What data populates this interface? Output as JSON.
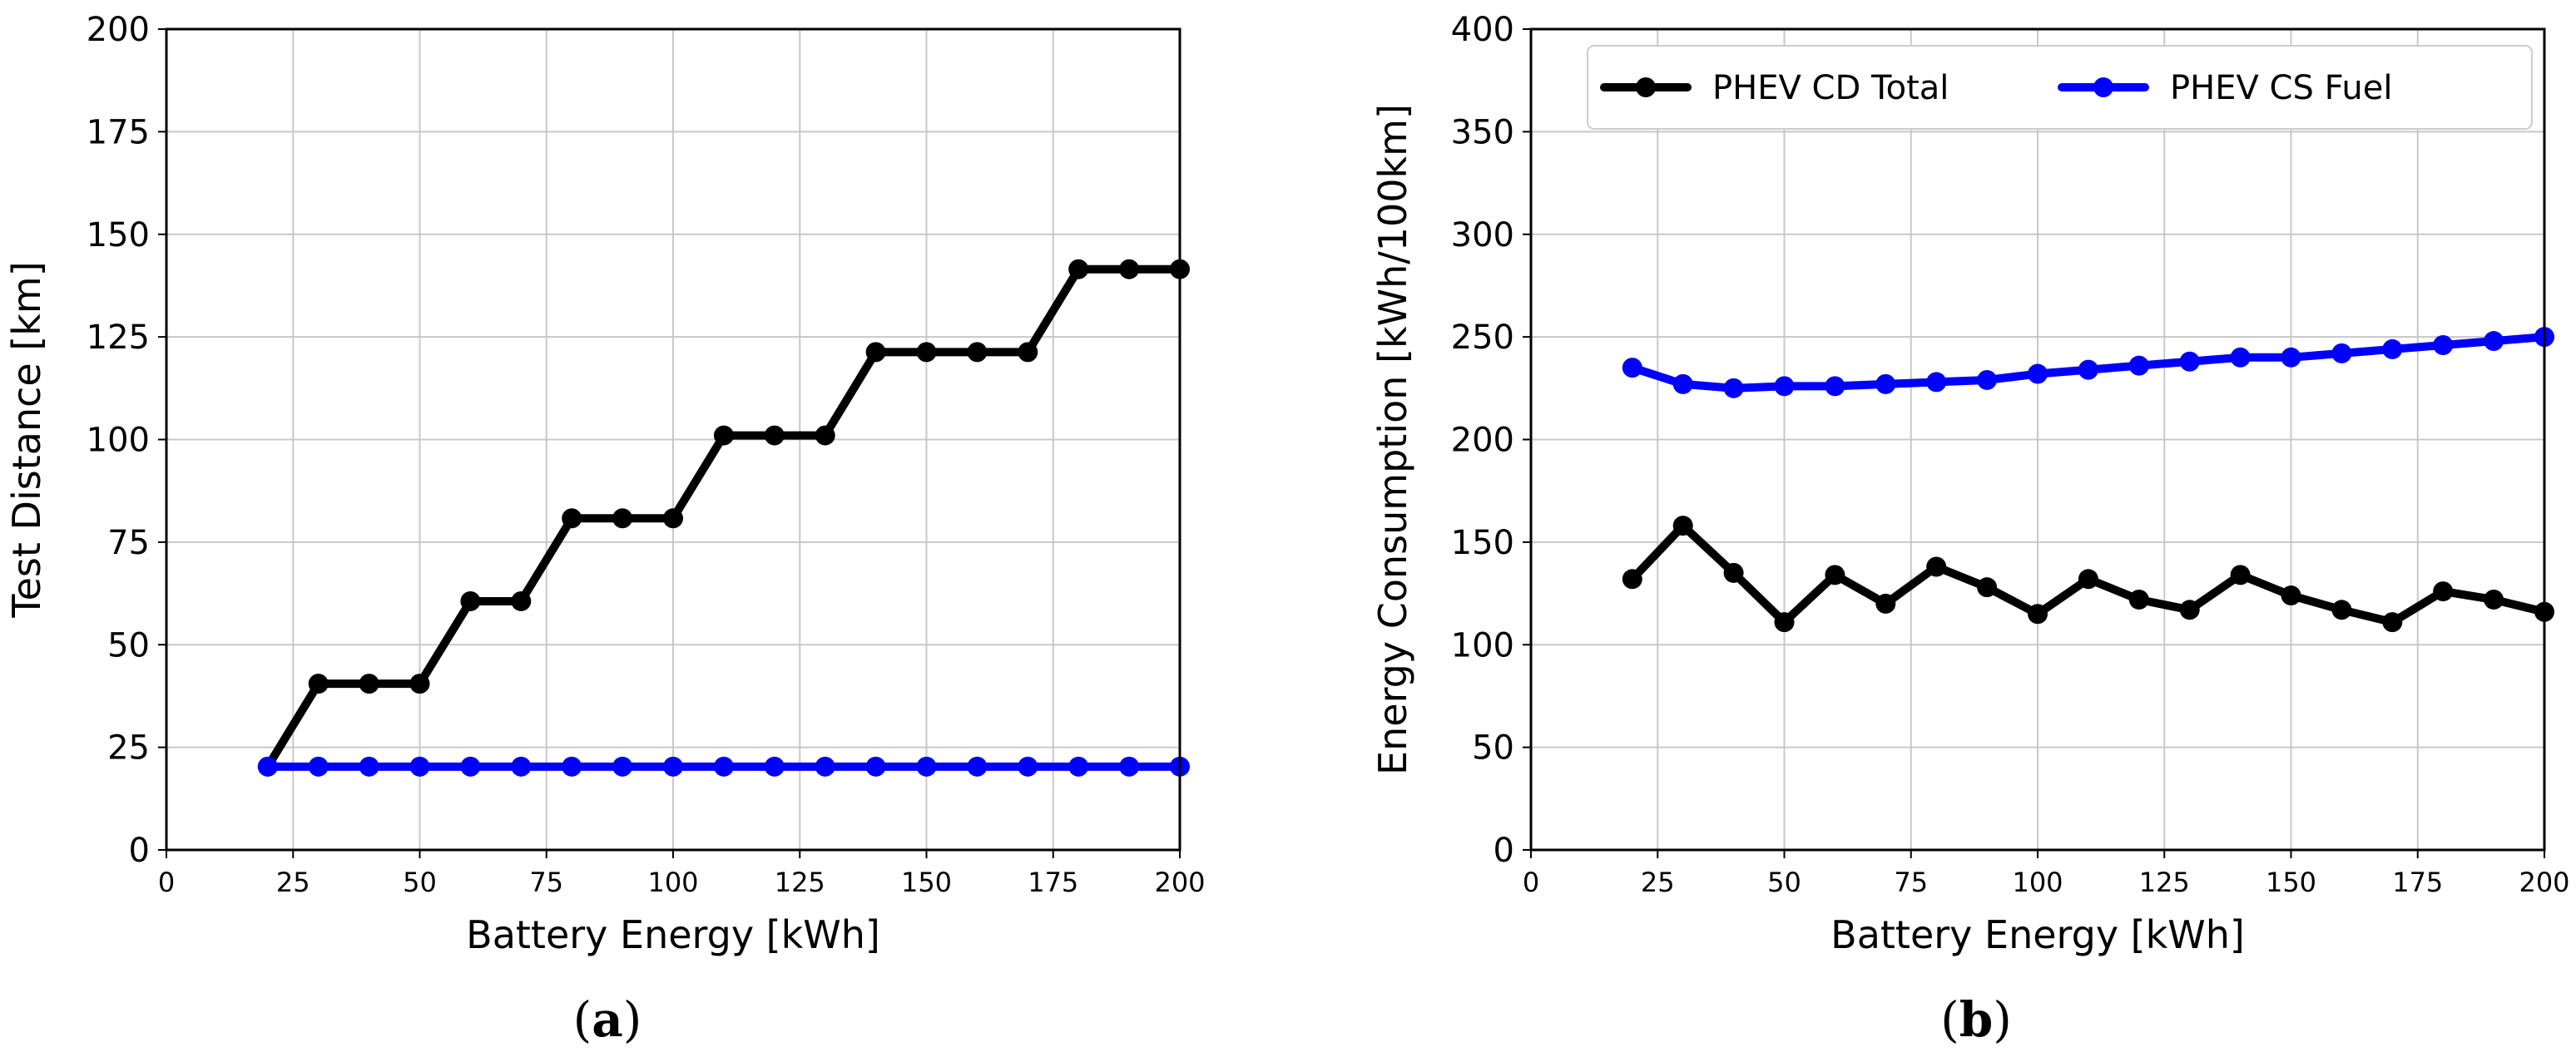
{
  "chart_data": [
    {
      "type": "line",
      "panel_caption_letter": "a",
      "xlabel": "Battery Energy [kWh]",
      "ylabel": "Test Distance [km]",
      "xlim": [
        0,
        200
      ],
      "ylim": [
        0,
        200
      ],
      "xticks": [
        0,
        25,
        50,
        75,
        100,
        125,
        150,
        175,
        200
      ],
      "yticks": [
        0,
        25,
        50,
        75,
        100,
        125,
        150,
        175,
        200
      ],
      "grid": true,
      "legend": null,
      "x": [
        20,
        30,
        40,
        50,
        60,
        70,
        80,
        90,
        100,
        110,
        120,
        130,
        140,
        150,
        160,
        170,
        180,
        190,
        200
      ],
      "series": [
        {
          "name": "PHEV CD Total",
          "color": "#000000",
          "values": [
            20.3,
            40.5,
            40.5,
            40.5,
            60.6,
            60.6,
            80.8,
            80.8,
            80.8,
            101,
            101,
            101,
            121.3,
            121.3,
            121.3,
            121.3,
            141.5,
            141.5,
            141.5
          ]
        },
        {
          "name": "PHEV CS Fuel",
          "color": "#0000ff",
          "values": [
            20.3,
            20.3,
            20.3,
            20.3,
            20.3,
            20.3,
            20.3,
            20.3,
            20.3,
            20.3,
            20.3,
            20.3,
            20.3,
            20.3,
            20.3,
            20.3,
            20.3,
            20.3,
            20.3
          ]
        }
      ]
    },
    {
      "type": "line",
      "panel_caption_letter": "b",
      "xlabel": "Battery Energy [kWh]",
      "ylabel": "Energy Consumption [kWh/100km]",
      "xlim": [
        0,
        200
      ],
      "ylim": [
        0,
        400
      ],
      "xticks": [
        0,
        25,
        50,
        75,
        100,
        125,
        150,
        175,
        200
      ],
      "yticks": [
        0,
        50,
        100,
        150,
        200,
        250,
        300,
        350,
        400
      ],
      "grid": true,
      "legend": "top-right",
      "x": [
        20,
        30,
        40,
        50,
        60,
        70,
        80,
        90,
        100,
        110,
        120,
        130,
        140,
        150,
        160,
        170,
        180,
        190,
        200
      ],
      "series": [
        {
          "name": "PHEV CD Total",
          "color": "#000000",
          "values": [
            132,
            158,
            135,
            111,
            134,
            120,
            138,
            128,
            115,
            132,
            122,
            117,
            134,
            124,
            117,
            111,
            126,
            122,
            116
          ]
        },
        {
          "name": "PHEV CS Fuel",
          "color": "#0000ff",
          "values": [
            235,
            227,
            225,
            226,
            226,
            227,
            228,
            229,
            232,
            234,
            236,
            238,
            240,
            240,
            242,
            244,
            246,
            248,
            250
          ]
        }
      ]
    }
  ]
}
